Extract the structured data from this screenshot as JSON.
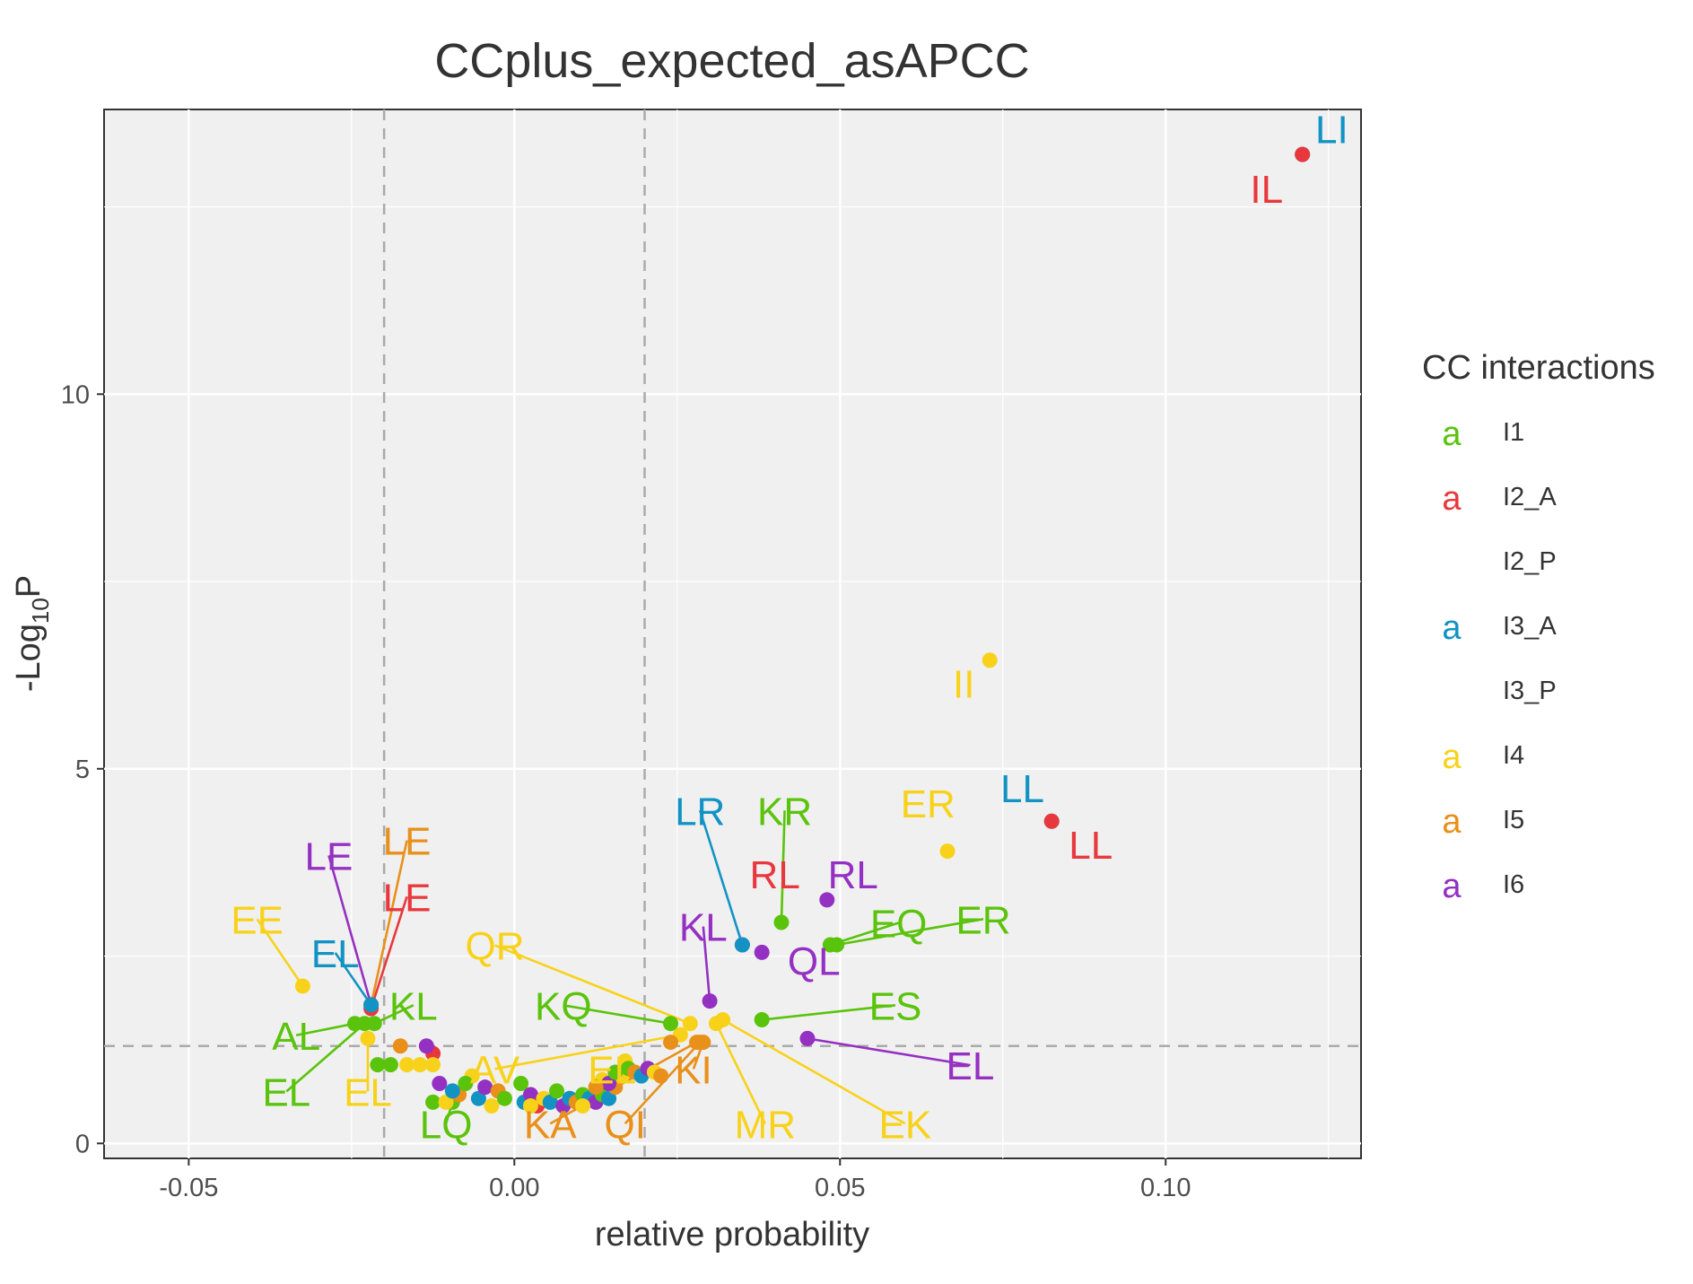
{
  "chart_data": {
    "type": "scatter",
    "title": "CCplus_expected_asAPCC",
    "xlabel": "relative probability",
    "ylabel": "-Log10P",
    "ylabel_parts": {
      "main": "-Log",
      "sub": "10",
      "tail": "P"
    },
    "xlim": [
      -0.063,
      0.13
    ],
    "ylim": [
      -0.2,
      13.8
    ],
    "x_ticks": [
      -0.05,
      0.0,
      0.05,
      0.1
    ],
    "x_tick_labels": [
      "-0.05",
      "0.00",
      "0.05",
      "0.10"
    ],
    "y_ticks": [
      0,
      5,
      10
    ],
    "y_tick_labels": [
      "0",
      "5",
      "10"
    ],
    "grid": true,
    "thresholds": {
      "x": [
        -0.02,
        0.02
      ],
      "y": 1.3
    },
    "legend": {
      "title": "CC interactions",
      "position": "right",
      "key_glyph": "a",
      "items": [
        {
          "name": "I1",
          "color": "#5ac30b"
        },
        {
          "name": "I2_A",
          "color": "#e8383d"
        },
        {
          "name": "I2_P",
          "color": null
        },
        {
          "name": "I3_A",
          "color": "#1293c4"
        },
        {
          "name": "I3_P",
          "color": null
        },
        {
          "name": "I4",
          "color": "#f8d21a"
        },
        {
          "name": "I5",
          "color": "#e8901a"
        },
        {
          "name": "I6",
          "color": "#9430c2"
        }
      ]
    },
    "colors": {
      "I1": "#5ac30b",
      "I2_A": "#e8383d",
      "I3_A": "#1293c4",
      "I4": "#f8d21a",
      "I5": "#e8901a",
      "I6": "#9430c2"
    },
    "points": [
      {
        "x": 0.121,
        "y": 13.2,
        "group": "I3_A",
        "label": "LI",
        "lx": 0.1255,
        "ly": 13.4
      },
      {
        "x": 0.121,
        "y": 13.2,
        "group": "I2_A",
        "label": "IL",
        "lx": 0.1155,
        "ly": 12.6
      },
      {
        "x": 0.073,
        "y": 6.45,
        "group": "I4",
        "label": "II",
        "lx": 0.069,
        "ly": 6.0
      },
      {
        "x": 0.0825,
        "y": 4.3,
        "group": "I3_A",
        "label": "LL",
        "lx": 0.078,
        "ly": 4.6
      },
      {
        "x": 0.0825,
        "y": 4.3,
        "group": "I2_A",
        "label": "LL",
        "lx": 0.0885,
        "ly": 3.85
      },
      {
        "x": 0.0665,
        "y": 3.9,
        "group": "I4",
        "label": "ER",
        "lx": 0.0635,
        "ly": 4.4
      },
      {
        "x": 0.048,
        "y": 3.25,
        "group": "I6",
        "label": "RL",
        "lx": 0.052,
        "ly": 3.45
      },
      {
        "x": 0.041,
        "y": 2.95,
        "group": "I1",
        "label": "KR",
        "lx": 0.0415,
        "ly": 4.3,
        "line": true
      },
      {
        "x": 0.035,
        "y": 2.65,
        "group": "I2_A",
        "label": "RL",
        "lx": 0.04,
        "ly": 3.45
      },
      {
        "x": 0.035,
        "y": 2.65,
        "group": "I3_A",
        "label": "LR",
        "lx": 0.0285,
        "ly": 4.3,
        "line": true
      },
      {
        "x": 0.038,
        "y": 2.55,
        "group": "I6",
        "label": "QL",
        "lx": 0.046,
        "ly": 2.3
      },
      {
        "x": 0.0485,
        "y": 2.65,
        "group": "I1",
        "label": "EQ",
        "lx": 0.059,
        "ly": 2.8,
        "line": true
      },
      {
        "x": 0.0495,
        "y": 2.65,
        "group": "I1",
        "label": "ER",
        "lx": 0.072,
        "ly": 2.85,
        "line": true
      },
      {
        "x": 0.03,
        "y": 1.9,
        "group": "I6",
        "label": "KL",
        "lx": 0.029,
        "ly": 2.75,
        "line": true
      },
      {
        "x": 0.038,
        "y": 1.65,
        "group": "I1",
        "label": "ES",
        "lx": 0.0585,
        "ly": 1.7,
        "line": true
      },
      {
        "x": 0.045,
        "y": 1.4,
        "group": "I6",
        "label": "EL",
        "lx": 0.07,
        "ly": 0.9,
        "line": true
      },
      {
        "x": 0.027,
        "y": 1.6,
        "group": "I4",
        "label": "QR",
        "lx": -0.003,
        "ly": 2.5,
        "line": true
      },
      {
        "x": 0.024,
        "y": 1.6,
        "group": "I1",
        "label": "KQ",
        "lx": 0.0075,
        "ly": 1.7,
        "line": true
      },
      {
        "x": 0.031,
        "y": 1.6,
        "group": "I4",
        "label": "MR",
        "lx": 0.0385,
        "ly": 0.12,
        "line": true
      },
      {
        "x": 0.032,
        "y": 1.65,
        "group": "I4",
        "label": "EK",
        "lx": 0.06,
        "ly": 0.12,
        "line": true
      },
      {
        "x": 0.0255,
        "y": 1.45,
        "group": "I4",
        "label": "AV",
        "lx": -0.003,
        "ly": 0.85,
        "line": true
      },
      {
        "x": 0.029,
        "y": 1.35,
        "group": "I5",
        "label": "KI",
        "lx": 0.0275,
        "ly": 0.85,
        "line": true
      },
      {
        "x": 0.028,
        "y": 1.35,
        "group": "I5",
        "label": "KA",
        "lx": 0.0055,
        "ly": 0.12,
        "line": true
      },
      {
        "x": 0.0285,
        "y": 1.35,
        "group": "I5",
        "label": "QI",
        "lx": 0.017,
        "ly": 0.12,
        "line": true
      },
      {
        "x": 0.017,
        "y": 1.1,
        "group": "I4",
        "label": "EL",
        "lx": 0.015,
        "ly": 0.85
      },
      {
        "x": 0.024,
        "y": 1.35,
        "group": "I5",
        "label": null
      },
      {
        "x": -0.022,
        "y": 1.8,
        "group": "I2_A",
        "label": "LE",
        "lx": -0.0165,
        "ly": 3.15,
        "line": true
      },
      {
        "x": -0.022,
        "y": 1.85,
        "group": "I5",
        "label": "LE",
        "lx": -0.0165,
        "ly": 3.9,
        "line": true
      },
      {
        "x": -0.022,
        "y": 1.85,
        "group": "I6",
        "label": "LE",
        "lx": -0.0285,
        "ly": 3.7,
        "line": true
      },
      {
        "x": -0.022,
        "y": 1.85,
        "group": "I3_A",
        "label": "EL",
        "lx": -0.0275,
        "ly": 2.4,
        "line": true
      },
      {
        "x": -0.0325,
        "y": 2.1,
        "group": "I4",
        "label": "EE",
        "lx": -0.0395,
        "ly": 2.85,
        "line": true
      },
      {
        "x": -0.0245,
        "y": 1.6,
        "group": "I1",
        "label": "AL",
        "lx": -0.0335,
        "ly": 1.3,
        "line": true
      },
      {
        "x": -0.0215,
        "y": 1.6,
        "group": "I1",
        "label": "KL",
        "lx": -0.0155,
        "ly": 1.7,
        "line": true
      },
      {
        "x": -0.023,
        "y": 1.6,
        "group": "I1",
        "label": "EL",
        "lx": -0.035,
        "ly": 0.55,
        "line": true
      },
      {
        "x": -0.0225,
        "y": 1.4,
        "group": "I4",
        "label": "EL",
        "lx": -0.0225,
        "ly": 0.55,
        "line": true
      },
      {
        "x": -0.0095,
        "y": 0.55,
        "group": "I1",
        "label": "LQ",
        "lx": -0.0105,
        "ly": 0.12,
        "line": true
      },
      {
        "x": -0.0125,
        "y": 1.2,
        "group": "I2_A",
        "label": null
      },
      {
        "x": -0.0175,
        "y": 1.3,
        "group": "I5",
        "label": null
      },
      {
        "x": -0.0135,
        "y": 1.3,
        "group": "I6",
        "label": null
      },
      {
        "x": -0.021,
        "y": 1.05,
        "group": "I1",
        "label": null
      },
      {
        "x": -0.019,
        "y": 1.05,
        "group": "I1",
        "label": null
      },
      {
        "x": -0.0165,
        "y": 1.05,
        "group": "I4",
        "label": null
      },
      {
        "x": -0.0145,
        "y": 1.05,
        "group": "I4",
        "label": null
      },
      {
        "x": -0.0125,
        "y": 1.05,
        "group": "I4",
        "label": null
      },
      {
        "x": -0.0115,
        "y": 0.8,
        "group": "I6",
        "label": null
      },
      {
        "x": -0.0125,
        "y": 0.55,
        "group": "I1",
        "label": null
      },
      {
        "x": -0.0105,
        "y": 0.55,
        "group": "I4",
        "label": null
      },
      {
        "x": -0.0085,
        "y": 0.65,
        "group": "I5",
        "label": null
      },
      {
        "x": -0.0065,
        "y": 0.9,
        "group": "I4",
        "label": null
      },
      {
        "x": -0.0055,
        "y": 0.6,
        "group": "I3_A",
        "label": null
      },
      {
        "x": -0.0045,
        "y": 0.75,
        "group": "I6",
        "label": null
      },
      {
        "x": -0.0035,
        "y": 0.5,
        "group": "I4",
        "label": null
      },
      {
        "x": -0.0025,
        "y": 0.7,
        "group": "I5",
        "label": null
      },
      {
        "x": -0.0015,
        "y": 0.6,
        "group": "I1",
        "label": null
      },
      {
        "x": 0.001,
        "y": 0.8,
        "group": "I1",
        "label": null
      },
      {
        "x": 0.0015,
        "y": 0.55,
        "group": "I3_A",
        "label": null
      },
      {
        "x": 0.0025,
        "y": 0.65,
        "group": "I6",
        "label": null
      },
      {
        "x": 0.0035,
        "y": 0.5,
        "group": "I2_A",
        "label": null
      },
      {
        "x": 0.0045,
        "y": 0.6,
        "group": "I4",
        "label": null
      },
      {
        "x": 0.0055,
        "y": 0.55,
        "group": "I3_A",
        "label": null
      },
      {
        "x": 0.0065,
        "y": 0.7,
        "group": "I1",
        "label": null
      },
      {
        "x": 0.0075,
        "y": 0.5,
        "group": "I6",
        "label": null
      },
      {
        "x": 0.0085,
        "y": 0.6,
        "group": "I3_A",
        "label": null
      },
      {
        "x": 0.0095,
        "y": 0.55,
        "group": "I5",
        "label": null
      },
      {
        "x": 0.0105,
        "y": 0.65,
        "group": "I1",
        "label": null
      },
      {
        "x": 0.0115,
        "y": 0.6,
        "group": "I3_A",
        "label": null
      },
      {
        "x": 0.0125,
        "y": 0.55,
        "group": "I6",
        "label": null
      },
      {
        "x": 0.0135,
        "y": 0.65,
        "group": "I1",
        "label": null
      },
      {
        "x": 0.0145,
        "y": 0.6,
        "group": "I3_A",
        "label": null
      },
      {
        "x": 0.0155,
        "y": 0.75,
        "group": "I5",
        "label": null
      },
      {
        "x": 0.0165,
        "y": 0.9,
        "group": "I4",
        "label": null
      },
      {
        "x": 0.0175,
        "y": 1.0,
        "group": "I1",
        "label": null
      },
      {
        "x": 0.0185,
        "y": 0.95,
        "group": "I5",
        "label": null
      },
      {
        "x": 0.0195,
        "y": 0.9,
        "group": "I3_A",
        "label": null
      },
      {
        "x": 0.0205,
        "y": 1.0,
        "group": "I6",
        "label": null
      },
      {
        "x": 0.0215,
        "y": 0.95,
        "group": "I4",
        "label": null
      },
      {
        "x": 0.0225,
        "y": 0.9,
        "group": "I5",
        "label": null
      },
      {
        "x": 0.0135,
        "y": 0.85,
        "group": "I4",
        "label": null
      },
      {
        "x": 0.0145,
        "y": 0.8,
        "group": "I6",
        "label": null
      },
      {
        "x": 0.0155,
        "y": 0.95,
        "group": "I1",
        "label": null
      },
      {
        "x": -0.0075,
        "y": 0.8,
        "group": "I1",
        "label": null
      },
      {
        "x": -0.0095,
        "y": 0.7,
        "group": "I3_A",
        "label": null
      },
      {
        "x": 0.0025,
        "y": 0.5,
        "group": "I4",
        "label": null
      },
      {
        "x": 0.0105,
        "y": 0.5,
        "group": "I4",
        "label": null
      },
      {
        "x": 0.0125,
        "y": 0.75,
        "group": "I5",
        "label": null
      }
    ]
  }
}
